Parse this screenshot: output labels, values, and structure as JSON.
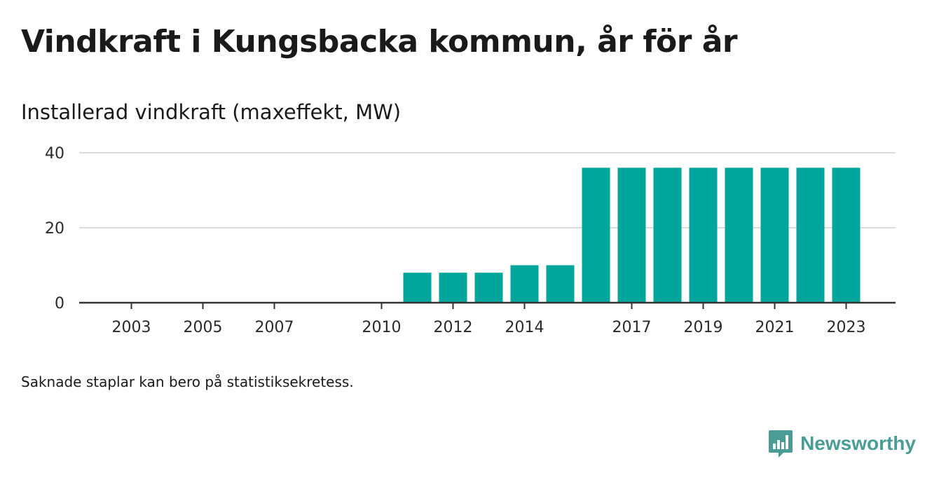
{
  "title": "Vindkraft i Kungsbacka kommun, år för år",
  "subtitle": "Installerad vindkraft (maxeffekt, MW)",
  "note": "Saknade staplar kan bero på statistiksekretess.",
  "brand": {
    "name": "Newsworthy",
    "logo_icon": "newsworthy-logo-icon",
    "color": "#4a9d96"
  },
  "chart_data": {
    "type": "bar",
    "categories": [
      "2003",
      "2004",
      "2005",
      "2006",
      "2007",
      "2008",
      "2009",
      "2010",
      "2011",
      "2012",
      "2013",
      "2014",
      "2015",
      "2016",
      "2017",
      "2018",
      "2019",
      "2020",
      "2021",
      "2022",
      "2023"
    ],
    "values": [
      0,
      0,
      0,
      0,
      0,
      null,
      null,
      0,
      8,
      8,
      8,
      10,
      10,
      36,
      36,
      36,
      36,
      36,
      36,
      36,
      36
    ],
    "x_tick_labels": [
      "2003",
      "2005",
      "2007",
      "2010",
      "2012",
      "2014",
      "2017",
      "2019",
      "2021",
      "2023"
    ],
    "y_ticks": [
      0,
      20,
      40
    ],
    "ylim": [
      0,
      40
    ],
    "ylabel": "",
    "xlabel": "",
    "bar_color": "#00a59b",
    "grid": true
  }
}
